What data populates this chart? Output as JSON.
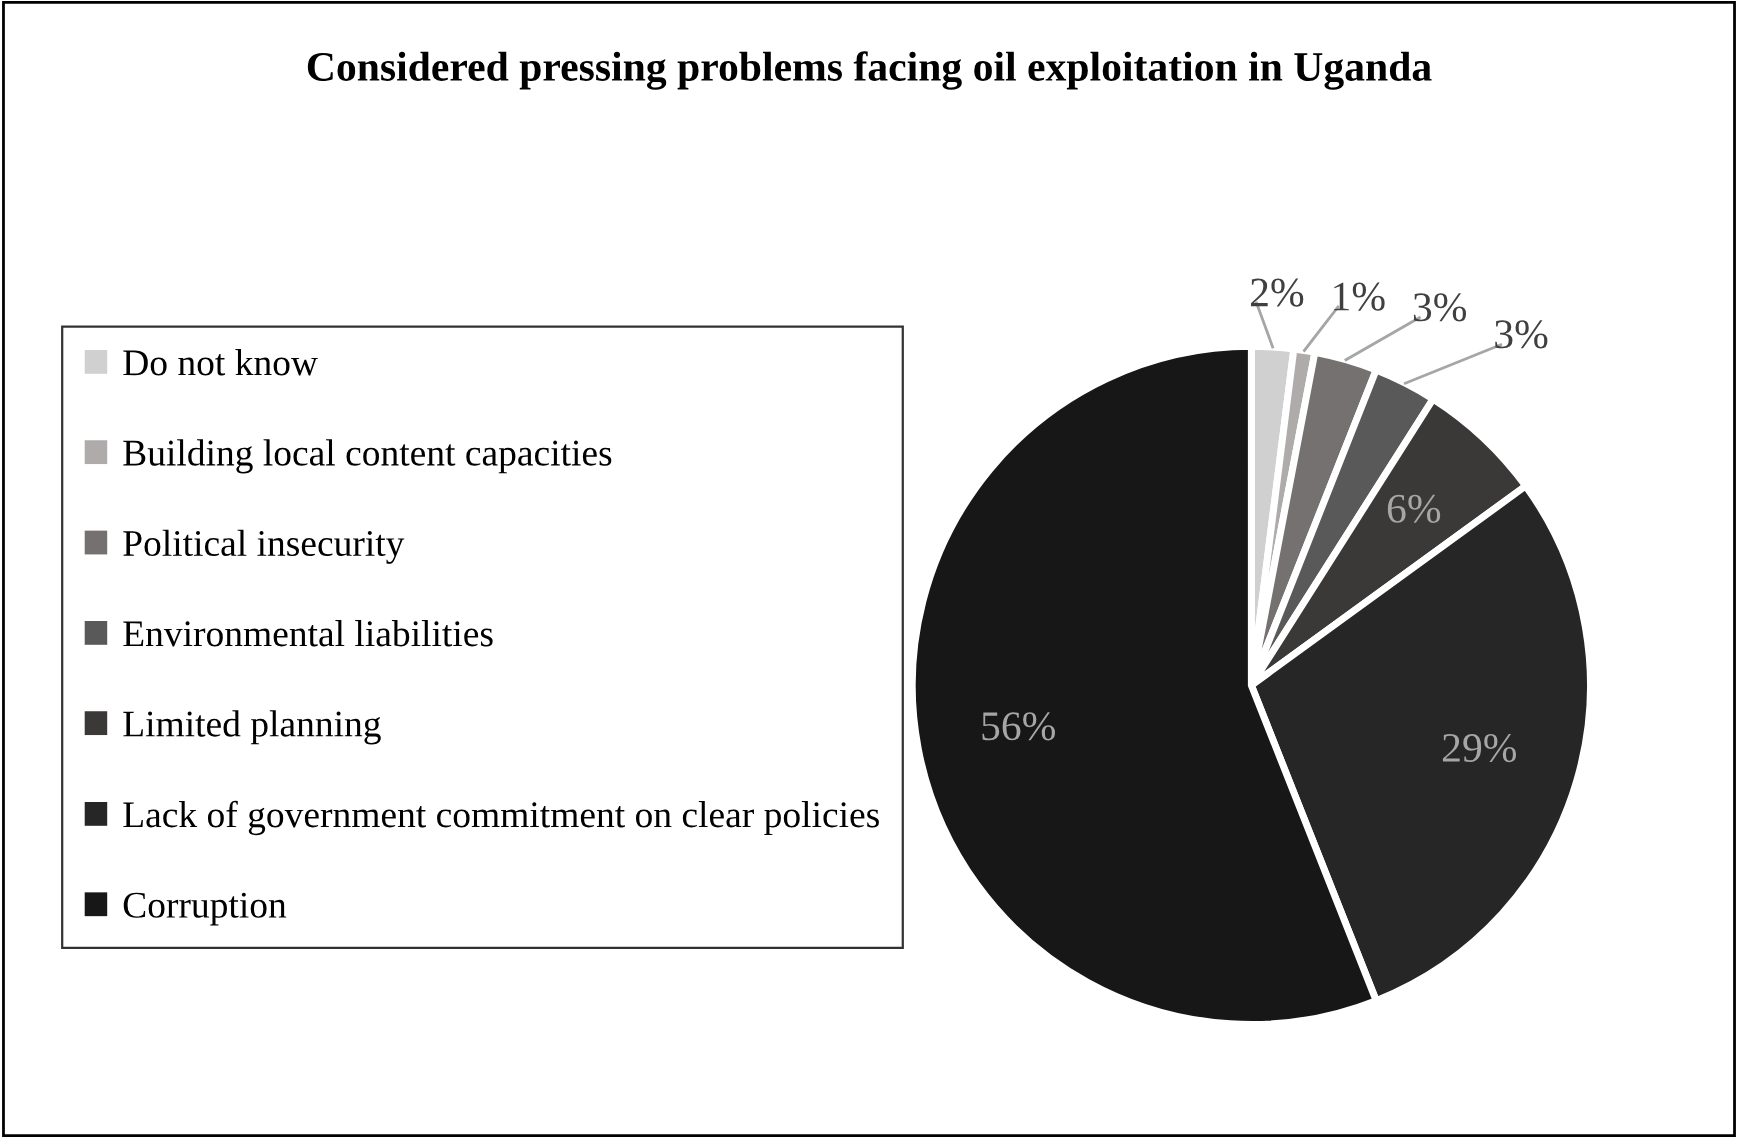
{
  "chart_data": {
    "type": "pie",
    "title": "Considered pressing problems facing oil exploitation in Uganda",
    "categories": [
      "Do not know",
      "Building local content capacities",
      "Political insecurity",
      "Environmental liabilities",
      "Limited planning",
      "Lack of government commitment on clear policies",
      "Corruption"
    ],
    "values": [
      2,
      1,
      3,
      3,
      6,
      29,
      56
    ],
    "value_labels": [
      "2%",
      "1%",
      "3%",
      "3%",
      "6%",
      "29%",
      "56%"
    ],
    "colors": [
      "#d0d0d0",
      "#afabab",
      "#767171",
      "#595959",
      "#3b3838",
      "#262626",
      "#171717"
    ],
    "legend": "left"
  }
}
